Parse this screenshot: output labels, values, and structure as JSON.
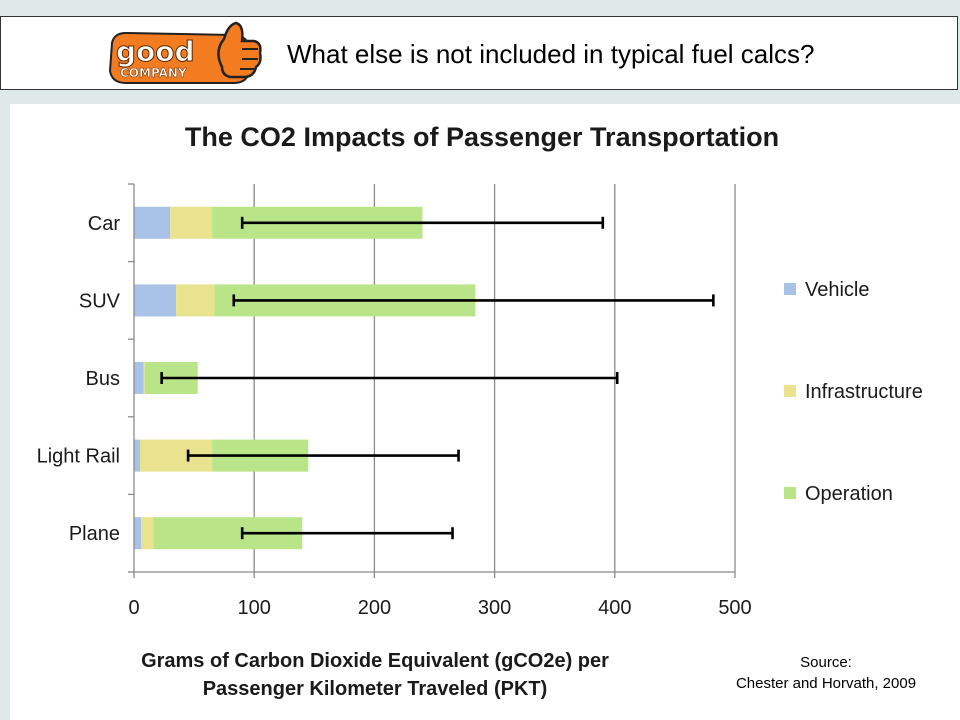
{
  "header": {
    "title": "What else is not included in typical fuel calcs?",
    "logo_text_top": "good",
    "logo_text_bottom": "COMPANY"
  },
  "source": {
    "line1": "Source:",
    "line2": "Chester and Horvath, 2009"
  },
  "colors": {
    "vehicle": "#a9c3e8",
    "infrastructure": "#e9e28f",
    "operation": "#b9e487",
    "logo": "#f47c20"
  },
  "chart_data": {
    "type": "bar",
    "orientation": "horizontal",
    "stacked": true,
    "title": "The CO2 Impacts of Passenger Transportation",
    "xlabel": "Grams of Carbon Dioxide Equivalent (gCO2e) per Passenger Kilometer Traveled (PKT)",
    "xlabel_lines": [
      "Grams of Carbon Dioxide Equivalent (gCO2e) per",
      "Passenger Kilometer Traveled (PKT)"
    ],
    "ylabel": "",
    "xlim": [
      0,
      500
    ],
    "xticks": [
      0,
      100,
      200,
      300,
      400,
      500
    ],
    "grid": "vertical",
    "legend_position": "right",
    "categories": [
      "Car",
      "SUV",
      "Bus",
      "Light Rail",
      "Plane"
    ],
    "series": [
      {
        "name": "Vehicle",
        "values": [
          30,
          35,
          8,
          5,
          6
        ]
      },
      {
        "name": "Infrastructure",
        "values": [
          35,
          32,
          1,
          60,
          10
        ]
      },
      {
        "name": "Operation",
        "values": [
          175,
          217,
          44,
          80,
          124
        ]
      }
    ],
    "error_bars": [
      {
        "low": 90,
        "high": 390
      },
      {
        "low": 83,
        "high": 482
      },
      {
        "low": 23,
        "high": 402
      },
      {
        "low": 45,
        "high": 270
      },
      {
        "low": 90,
        "high": 265
      }
    ]
  }
}
